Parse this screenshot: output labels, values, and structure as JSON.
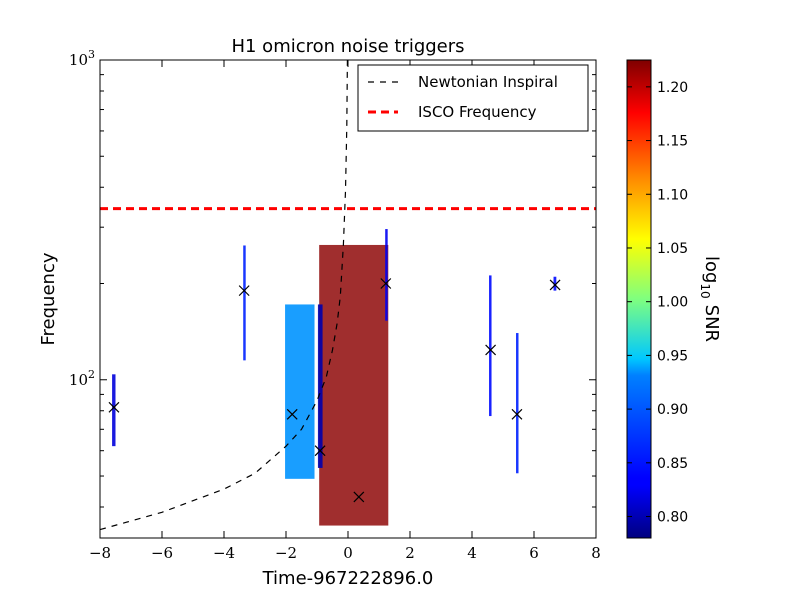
{
  "chart_data": {
    "type": "scatter",
    "title": "H1 omicron noise triggers",
    "xlabel": "Time-967222896.0",
    "ylabel": "Frequency",
    "xlim": [
      -8,
      8
    ],
    "ylim": [
      32,
      1000
    ],
    "yscale": "log",
    "x_ticks": [
      -8,
      -6,
      -4,
      -2,
      0,
      2,
      4,
      6,
      8
    ],
    "x_tick_labels": [
      "−8",
      "−6",
      "−4",
      "−2",
      "0",
      "2",
      "4",
      "6",
      "8"
    ],
    "y_ticks": [
      100,
      1000
    ],
    "y_tick_labels": [
      {
        "base": "10",
        "exp": "2"
      },
      {
        "base": "10",
        "exp": "3"
      }
    ],
    "grid": false,
    "legend_position": "top-right",
    "legend": [
      {
        "label": "Newtonian Inspiral",
        "color": "#000000",
        "style": "dashed"
      },
      {
        "label": "ISCO Frequency",
        "color": "#ff0000",
        "style": "dashed"
      }
    ],
    "isco_frequency": 343,
    "newtonian_inspiral": {
      "x": [
        -8,
        -6,
        -4,
        -3,
        -2,
        -1.5,
        -1,
        -0.7,
        -0.5,
        -0.35,
        -0.25,
        -0.15,
        -0.08,
        -0.04,
        -0.02
      ],
      "y": [
        34,
        38.5,
        45.5,
        51,
        62,
        70,
        86,
        102,
        124,
        150,
        182,
        265,
        390,
        620,
        1000
      ]
    },
    "triggers": [
      {
        "t_start": -0.93,
        "t_end": 1.3,
        "f_low": 35,
        "f_high": 264,
        "time": 0.35,
        "frequency": 43,
        "log10_snr": 1.22
      },
      {
        "t_start": -2.03,
        "t_end": -1.08,
        "f_low": 49,
        "f_high": 172,
        "time": -1.8,
        "frequency": 78,
        "log10_snr": 0.9
      },
      {
        "t_start": -0.97,
        "t_end": -0.82,
        "f_low": 53,
        "f_high": 172,
        "time": -0.9,
        "frequency": 60,
        "log10_snr": 0.8
      },
      {
        "t_start": -7.61,
        "t_end": -7.5,
        "f_low": 62,
        "f_high": 104,
        "time": -7.55,
        "frequency": 82,
        "log10_snr": 0.82
      },
      {
        "t_start": -3.38,
        "t_end": -3.3,
        "f_low": 115,
        "f_high": 263,
        "time": -3.35,
        "frequency": 190,
        "log10_snr": 0.85
      },
      {
        "t_start": 1.2,
        "t_end": 1.28,
        "f_low": 153,
        "f_high": 296,
        "time": 1.22,
        "frequency": 200,
        "log10_snr": 0.83
      },
      {
        "t_start": 4.55,
        "t_end": 4.63,
        "f_low": 77,
        "f_high": 212,
        "time": 4.6,
        "frequency": 124,
        "log10_snr": 0.84
      },
      {
        "t_start": 5.42,
        "t_end": 5.5,
        "f_low": 51,
        "f_high": 140,
        "time": 5.45,
        "frequency": 78,
        "log10_snr": 0.85
      },
      {
        "t_start": 6.63,
        "t_end": 6.72,
        "f_low": 190,
        "f_high": 210,
        "time": 6.68,
        "frequency": 198,
        "log10_snr": 0.84
      }
    ],
    "colorbar": {
      "label_prefix": "log",
      "label_sub": "10",
      "label_suffix": "SNR",
      "range": [
        0.78,
        1.225
      ],
      "ticks": [
        0.8,
        0.85,
        0.9,
        0.95,
        1.0,
        1.05,
        1.1,
        1.15,
        1.2
      ],
      "tick_labels": [
        "0.80",
        "0.85",
        "0.90",
        "0.95",
        "1.00",
        "1.05",
        "1.10",
        "1.15",
        "1.20"
      ],
      "colormap": "jet"
    }
  }
}
